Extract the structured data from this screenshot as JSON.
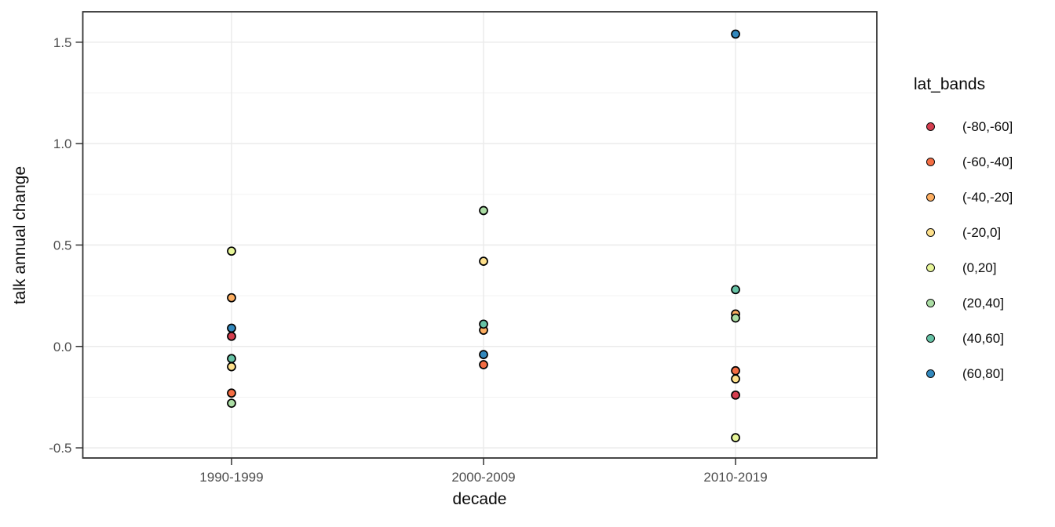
{
  "figure": {
    "background": "#FFFFFF",
    "panel_background": "#FFFFFF",
    "panel_border_color": "#333333",
    "grid_major_color": "#EBEBEB",
    "grid_minor_color": "#F0F0F0",
    "axis_tick_color": "#333333",
    "tick_label_color": "#4D4D4D",
    "title_color": "#0A0A0A",
    "point_stroke_color": "#000000"
  },
  "chart_data": {
    "type": "scatter",
    "title": "",
    "xlabel": "decade",
    "ylabel": "talk annual change",
    "categories": [
      "1990-1999",
      "2000-2009",
      "2010-2019"
    ],
    "y_ticks": [
      1.5,
      1.0,
      0.5,
      0.0,
      -0.5
    ],
    "y_tick_labels": [
      "1.5",
      "1.0",
      "0.5",
      "0.0",
      "-0.5"
    ],
    "y_minor_ticks": [
      1.25,
      0.75,
      0.25,
      -0.25
    ],
    "ylim": [
      -0.55,
      1.65
    ],
    "grid": true,
    "legend": {
      "title": "lat_bands",
      "position": "right"
    },
    "series": [
      {
        "name": "(-80,-60]",
        "color": "#D53E4F",
        "values": [
          0.05,
          null,
          -0.24
        ]
      },
      {
        "name": "(-60,-40]",
        "color": "#F46D43",
        "values": [
          -0.23,
          -0.09,
          -0.12
        ]
      },
      {
        "name": "(-40,-20]",
        "color": "#FDAE61",
        "values": [
          0.24,
          0.08,
          0.16
        ]
      },
      {
        "name": "(-20,0]",
        "color": "#FEE08B",
        "values": [
          -0.1,
          0.42,
          -0.16
        ]
      },
      {
        "name": "(0,20]",
        "color": "#E6F598",
        "values": [
          0.47,
          null,
          -0.45
        ]
      },
      {
        "name": "(20,40]",
        "color": "#ABDDA4",
        "values": [
          -0.28,
          0.67,
          0.14
        ]
      },
      {
        "name": "(40,60]",
        "color": "#66C2A5",
        "values": [
          -0.06,
          0.11,
          0.28
        ]
      },
      {
        "name": "(60,80]",
        "color": "#3288BD",
        "values": [
          0.09,
          -0.04,
          1.54
        ]
      }
    ]
  }
}
